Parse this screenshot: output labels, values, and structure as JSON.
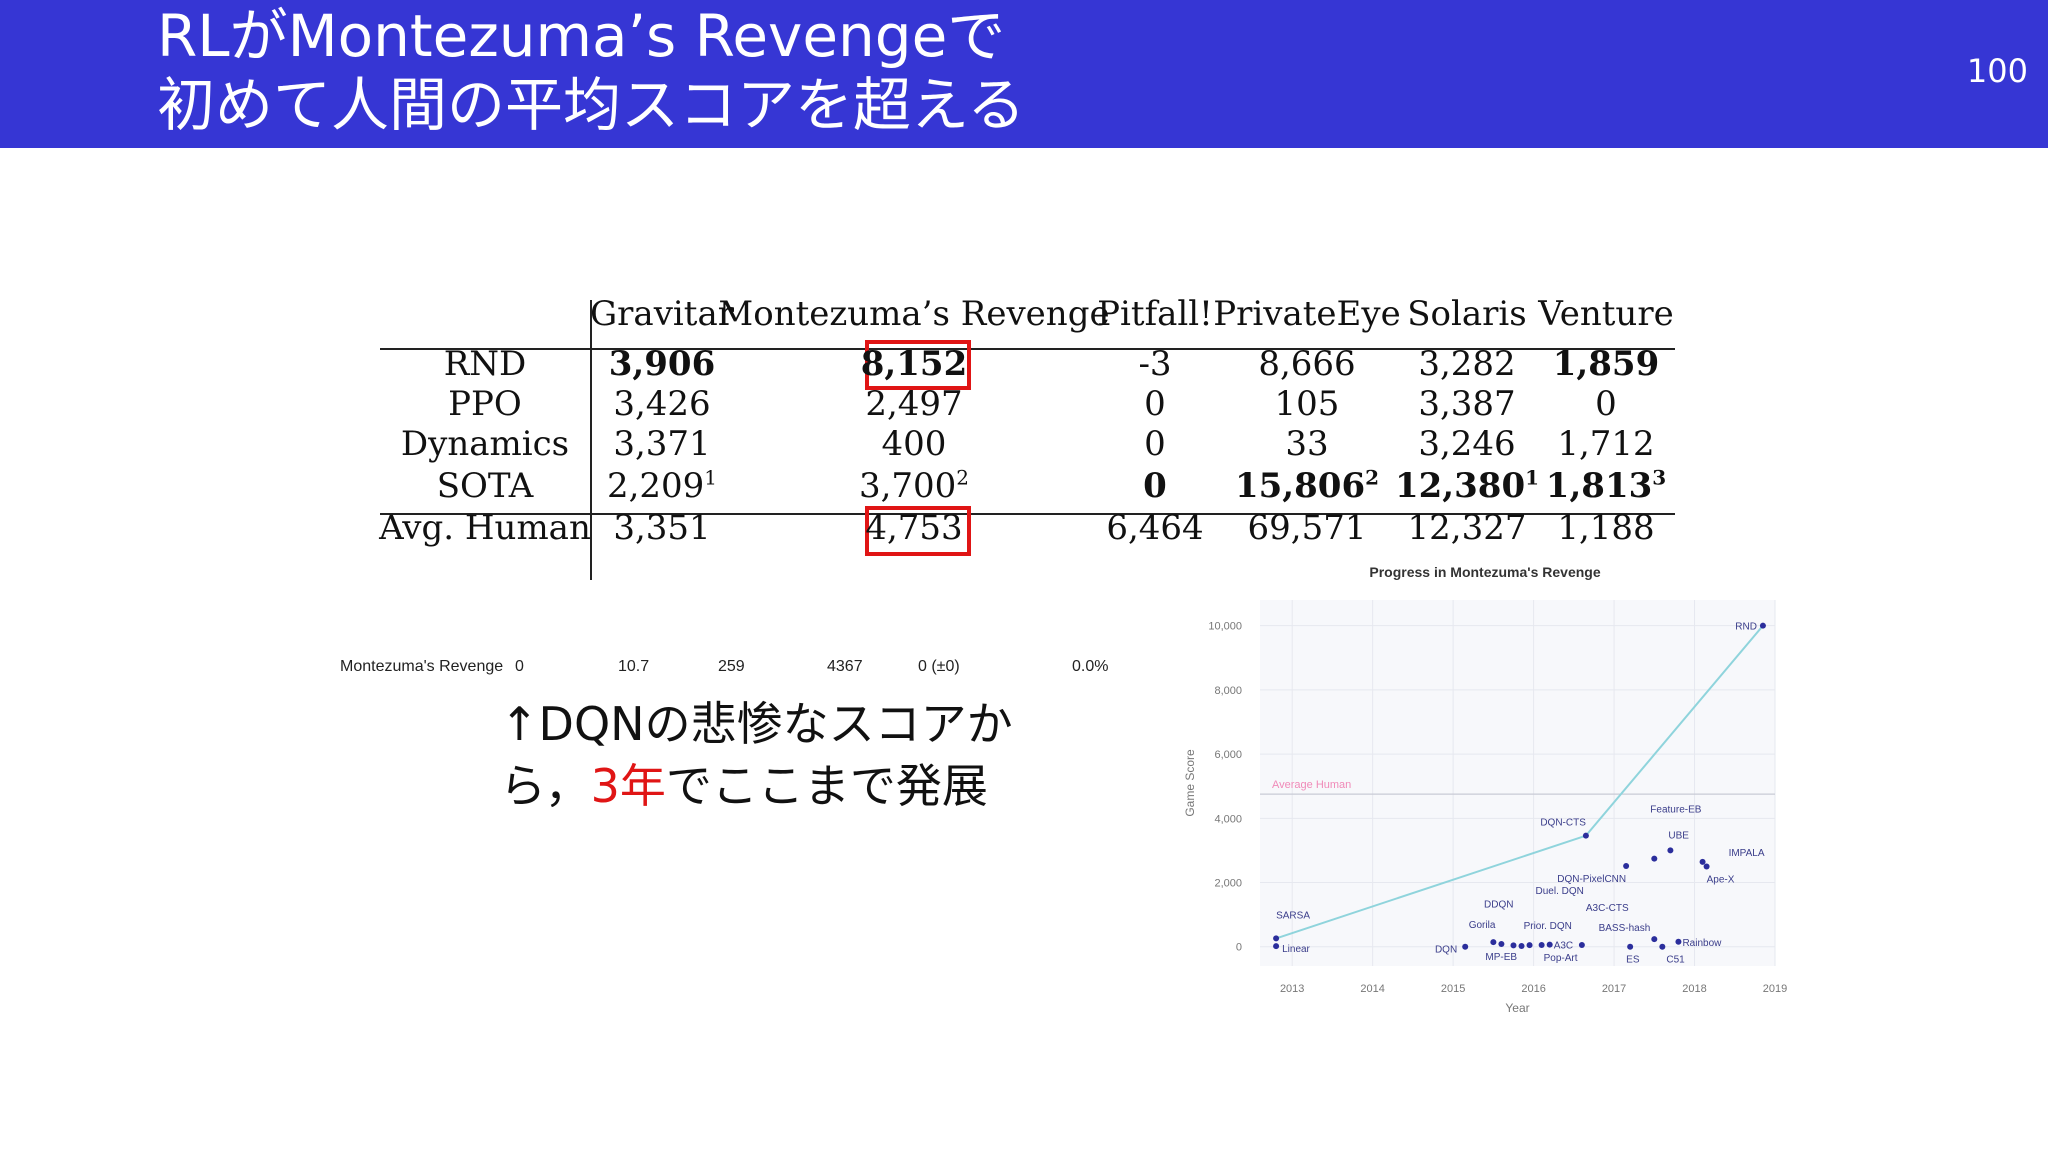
{
  "slide": {
    "title_line1": "RLがMontezuma’s Revengeで",
    "title_line2": "初めて人間の平均スコアを超える",
    "page_number": "100"
  },
  "results_table": {
    "headers": [
      "Gravitar",
      "Montezuma’s Revenge",
      "Pitfall!",
      "PrivateEye",
      "Solaris",
      "Venture"
    ],
    "rows": [
      {
        "label": "RND",
        "values": [
          "3,906",
          "8,152",
          "-3",
          "8,666",
          "3,282",
          "1,859"
        ],
        "sup": [
          "",
          "",
          "",
          "",
          "",
          ""
        ],
        "bold": [
          true,
          true,
          false,
          false,
          false,
          true
        ]
      },
      {
        "label": "PPO",
        "values": [
          "3,426",
          "2,497",
          "0",
          "105",
          "3,387",
          "0"
        ],
        "sup": [
          "",
          "",
          "",
          "",
          "",
          ""
        ],
        "bold": [
          false,
          false,
          false,
          false,
          false,
          false
        ]
      },
      {
        "label": "Dynamics",
        "values": [
          "3,371",
          "400",
          "0",
          "33",
          "3,246",
          "1,712"
        ],
        "sup": [
          "",
          "",
          "",
          "",
          "",
          ""
        ],
        "bold": [
          false,
          false,
          false,
          false,
          false,
          false
        ]
      },
      {
        "label": "SOTA",
        "values": [
          "2,209",
          "3,700",
          "0",
          "15,806",
          "12,380",
          "1,813"
        ],
        "sup": [
          "1",
          "2",
          "",
          "2",
          "1",
          "3"
        ],
        "bold": [
          false,
          false,
          true,
          true,
          true,
          true
        ]
      },
      {
        "label": "Avg. Human",
        "values": [
          "3,351",
          "4,753",
          "6,464",
          "69,571",
          "12,327",
          "1,188"
        ],
        "sup": [
          "",
          "",
          "",
          "",
          "",
          ""
        ],
        "bold": [
          false,
          false,
          false,
          false,
          false,
          false
        ]
      }
    ]
  },
  "dqn_row": {
    "game": "Montezuma's Revenge",
    "values": [
      "0",
      "10.7",
      "259",
      "4367",
      "0 (±0)",
      "0.0%"
    ]
  },
  "note": {
    "line1": "↑DQNの悲惨なスコアか",
    "line2_pre": "ら，",
    "line2_red": "3年",
    "line2_post": "でここまで発展"
  },
  "chart_data": {
    "type": "scatter",
    "title": "Progress in Montezuma's Revenge",
    "xlabel": "Year",
    "ylabel": "Game Score",
    "x_ticks": [
      "2013",
      "2014",
      "2015",
      "2016",
      "2017",
      "2018",
      "2019"
    ],
    "y_ticks": [
      "0",
      "2,000",
      "4,000",
      "6,000",
      "8,000",
      "10,000"
    ],
    "xlim": [
      2012.6,
      2019.0
    ],
    "ylim": [
      -600,
      10800
    ],
    "reference_line": {
      "label": "Average Human",
      "value": 4753
    },
    "frontier": [
      [
        2012.8,
        259
      ],
      [
        2016.65,
        3459
      ],
      [
        2018.85,
        10000
      ]
    ],
    "points": [
      {
        "name": "Linear",
        "x": 2012.8,
        "y": 20
      },
      {
        "name": "SARSA",
        "x": 2012.8,
        "y": 259
      },
      {
        "name": "DQN",
        "x": 2015.15,
        "y": 0
      },
      {
        "name": "MP-EB",
        "x": 2015.5,
        "y": 142
      },
      {
        "name": "Gorila",
        "x": 2015.6,
        "y": 84
      },
      {
        "name": "DDQN",
        "x": 2015.75,
        "y": 42
      },
      {
        "name": "Duel. DQN",
        "x": 2015.85,
        "y": 22
      },
      {
        "name": "Prior. DQN",
        "x": 2015.95,
        "y": 51
      },
      {
        "name": "Pop-Art",
        "x": 2016.1,
        "y": 53
      },
      {
        "name": "A3C",
        "x": 2016.2,
        "y": 67
      },
      {
        "name": "A3C-CTS",
        "x": 2016.6,
        "y": 53
      },
      {
        "name": "DQN-CTS",
        "x": 2016.65,
        "y": 3459
      },
      {
        "name": "DQN-PixelCNN",
        "x": 2017.15,
        "y": 2514
      },
      {
        "name": "BASS-hash",
        "x": 2017.5,
        "y": 238
      },
      {
        "name": "ES",
        "x": 2017.2,
        "y": 0
      },
      {
        "name": "C51",
        "x": 2017.6,
        "y": 0
      },
      {
        "name": "Feature-EB",
        "x": 2017.5,
        "y": 2745
      },
      {
        "name": "UBE",
        "x": 2017.7,
        "y": 3000
      },
      {
        "name": "Rainbow",
        "x": 2017.8,
        "y": 154
      },
      {
        "name": "IMPALA",
        "x": 2018.1,
        "y": 2643
      },
      {
        "name": "Ape-X",
        "x": 2018.15,
        "y": 2500
      },
      {
        "name": "RND",
        "x": 2018.85,
        "y": 10000
      }
    ],
    "label_offsets": {
      "Linear": [
        6,
        6,
        "start"
      ],
      "SARSA": [
        0,
        -20,
        "start"
      ],
      "DQN": [
        -8,
        6,
        "end"
      ],
      "MP-EB": [
        -8,
        18,
        "start"
      ],
      "Gorila": [
        -6,
        -16,
        "end"
      ],
      "DDQN": [
        0,
        -38,
        "end"
      ],
      "Duel. DQN": [
        14,
        -52,
        "start"
      ],
      "Prior. DQN": [
        -6,
        -16,
        "start"
      ],
      "Pop-Art": [
        2,
        16,
        "start"
      ],
      "A3C": [
        4,
        4,
        "start"
      ],
      "A3C-CTS": [
        4,
        -34,
        "start"
      ],
      "DQN-CTS": [
        0,
        -10,
        "end"
      ],
      "DQN-PixelCNN": [
        0,
        16,
        "end"
      ],
      "BASS-hash": [
        -4,
        -8,
        "end"
      ],
      "ES": [
        -4,
        16,
        "start"
      ],
      "C51": [
        4,
        16,
        "start"
      ],
      "Feature-EB": [
        -4,
        -46,
        "start"
      ],
      "UBE": [
        -2,
        -12,
        "start"
      ],
      "Rainbow": [
        4,
        4,
        "start"
      ],
      "IMPALA": [
        26,
        -6,
        "start"
      ],
      "Ape-X": [
        0,
        16,
        "start"
      ],
      "RND": [
        -6,
        4,
        "end"
      ]
    },
    "colors": {
      "points": "#2b2e9c",
      "frontier": "#8fd4dc",
      "reference": "#f08ab8",
      "grid": "#e6e8ef",
      "plot_bg": "#f7f8fb"
    }
  }
}
